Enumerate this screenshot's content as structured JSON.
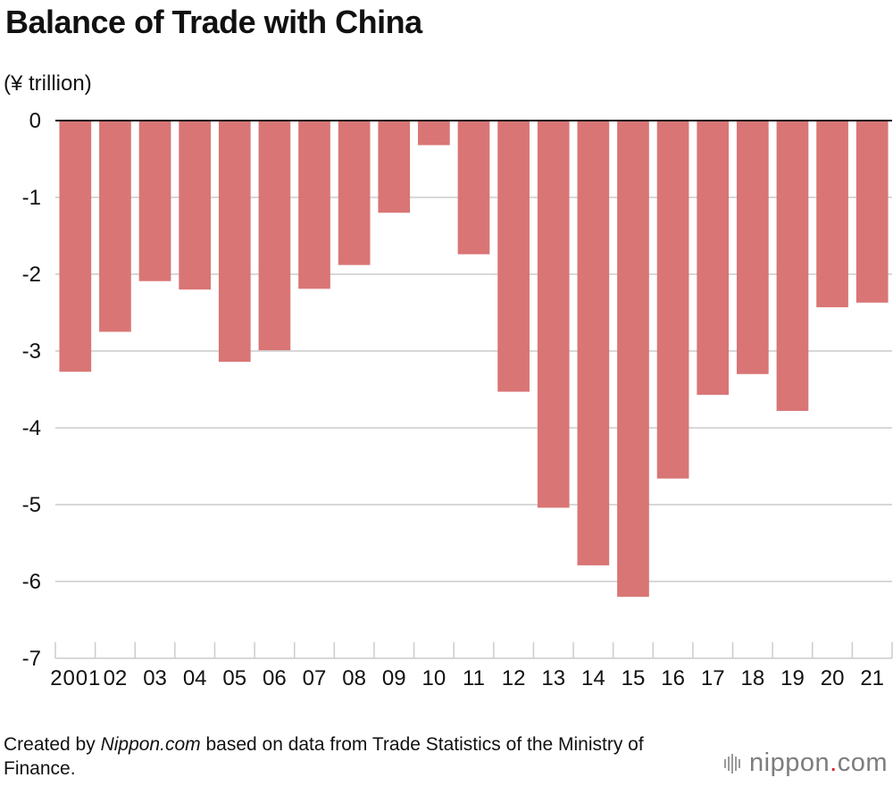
{
  "title": "Balance of Trade with China",
  "unit": "(¥ trillion)",
  "source": {
    "prefix": "Created by ",
    "site": "Nippon.com",
    "suffix": " based on data from Trade Statistics of the Ministry of Finance."
  },
  "logo": {
    "name": "nippon",
    "dot": ".",
    "tld": "com"
  },
  "colors": {
    "bar": "#d97575",
    "grid": "#cccccc",
    "zero_line": "#111111",
    "text": "#111111"
  },
  "chart_data": {
    "type": "bar",
    "title": "Balance of Trade with China",
    "ylabel": "(¥ trillion)",
    "xlabel": "",
    "categories": [
      "2001",
      "02",
      "03",
      "04",
      "05",
      "06",
      "07",
      "08",
      "09",
      "10",
      "11",
      "12",
      "13",
      "14",
      "15",
      "16",
      "17",
      "18",
      "19",
      "20",
      "21"
    ],
    "values": [
      -3.27,
      -2.75,
      -2.09,
      -2.2,
      -3.14,
      -2.99,
      -2.19,
      -1.88,
      -1.2,
      -0.32,
      -1.74,
      -3.53,
      -5.04,
      -5.79,
      -6.2,
      -4.66,
      -3.57,
      -3.3,
      -3.78,
      -2.43,
      -2.37
    ],
    "yticks": [
      "0",
      "-1",
      "-2",
      "-3",
      "-4",
      "-5",
      "-6",
      "-7"
    ],
    "ylim": [
      -7,
      0
    ],
    "grid": true,
    "legend": "none"
  }
}
